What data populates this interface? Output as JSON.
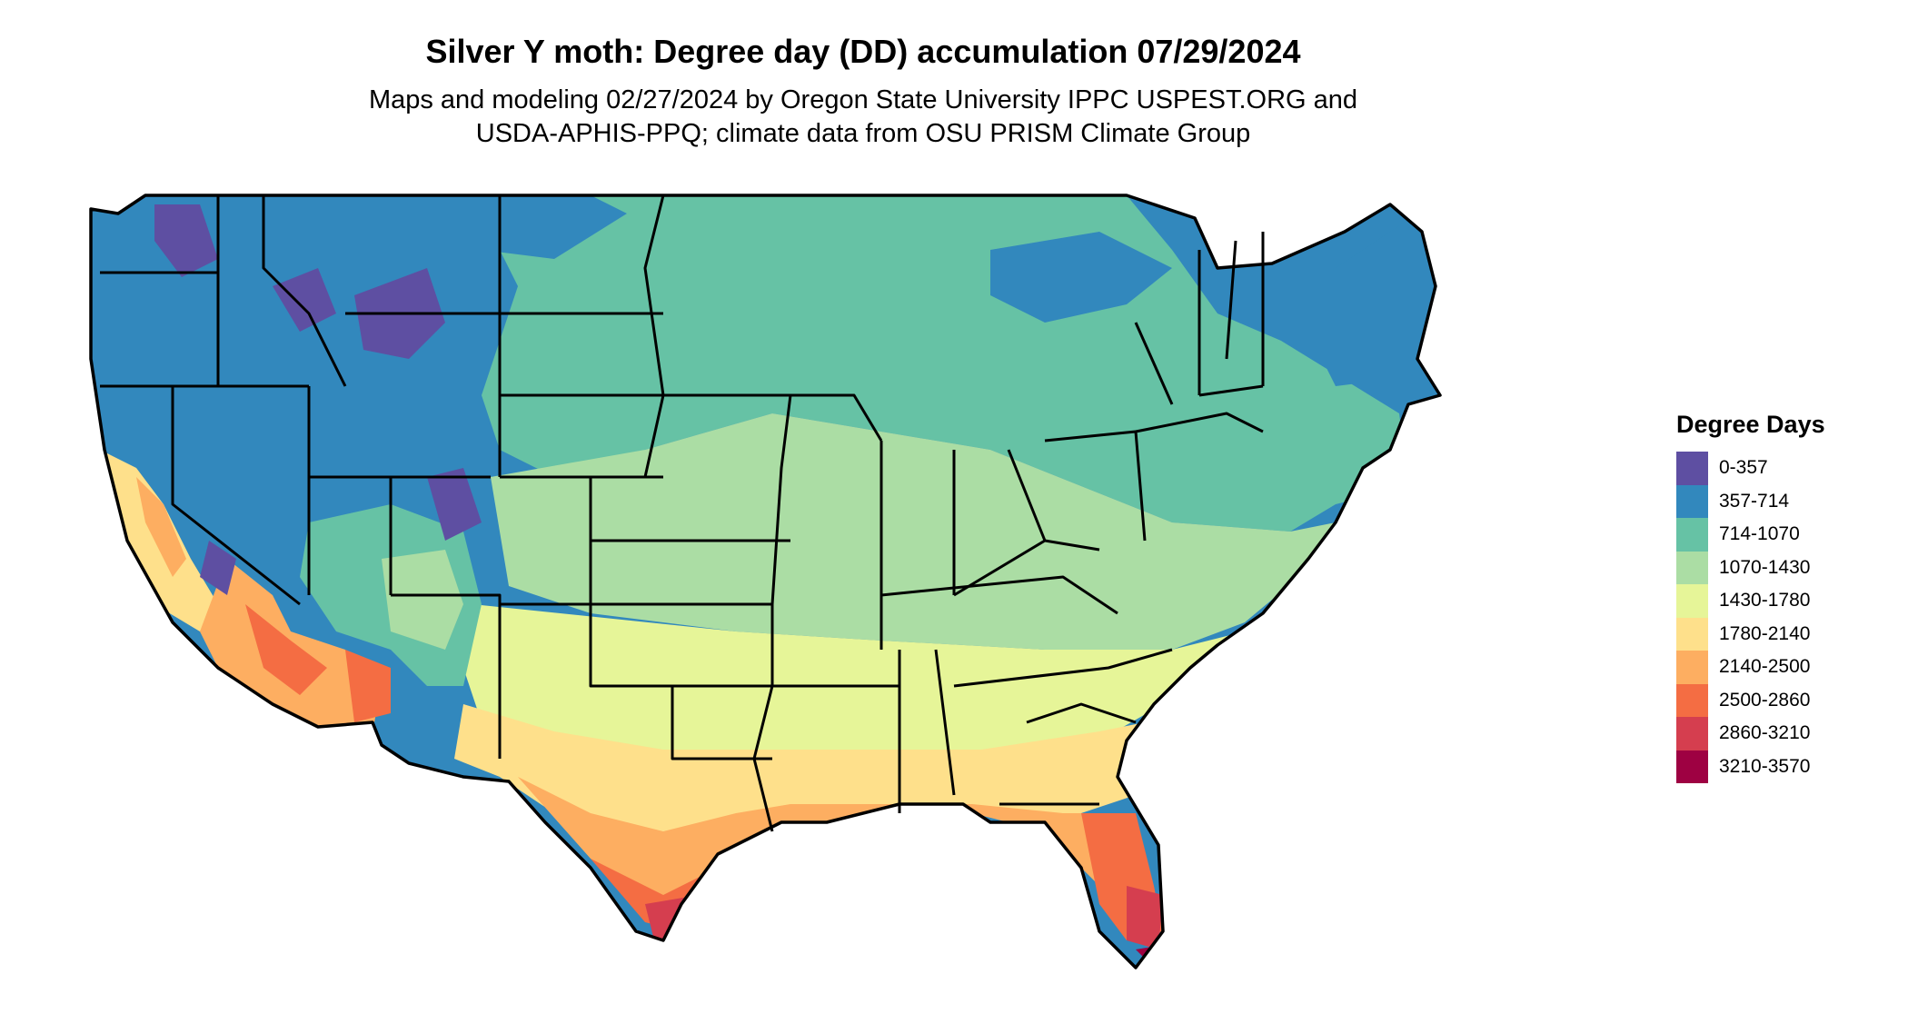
{
  "title": "Silver Y moth: Degree day (DD) accumulation 07/29/2024",
  "subtitle_line1": "Maps and modeling 02/27/2024 by Oregon State University IPPC USPEST.ORG and",
  "subtitle_line2": "USDA-APHIS-PPQ; climate data from OSU PRISM Climate Group",
  "legend": {
    "title": "Degree Days",
    "items": [
      {
        "label": "0-357",
        "color": "#5e4fa2"
      },
      {
        "label": "357-714",
        "color": "#3288bd"
      },
      {
        "label": "714-1070",
        "color": "#66c2a5"
      },
      {
        "label": "1070-1430",
        "color": "#abdda4"
      },
      {
        "label": "1430-1780",
        "color": "#e6f598"
      },
      {
        "label": "1780-2140",
        "color": "#fee08b"
      },
      {
        "label": "2140-2500",
        "color": "#fdae61"
      },
      {
        "label": "2500-2860",
        "color": "#f46d43"
      },
      {
        "label": "2860-3210",
        "color": "#d53e4f"
      },
      {
        "label": "3210-3570",
        "color": "#9e0142"
      }
    ]
  },
  "map": {
    "region": "Contiguous United States",
    "borders": "state boundaries"
  }
}
